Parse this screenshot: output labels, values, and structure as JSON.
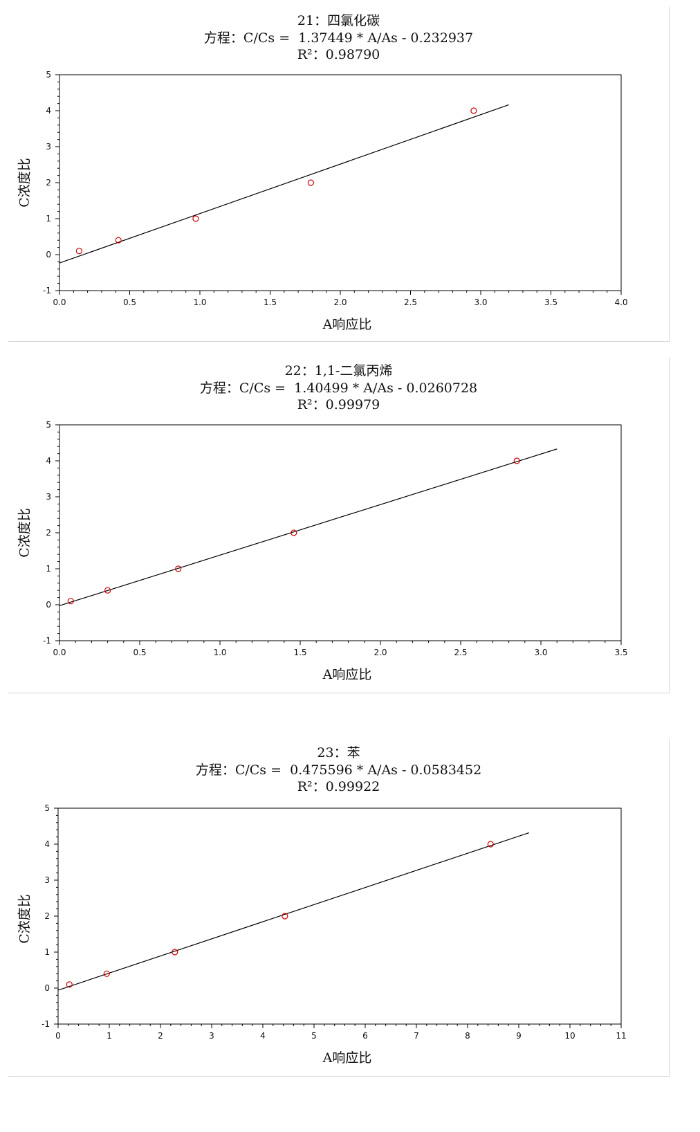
{
  "colors": {
    "point": "#cc0000",
    "line": "#000000",
    "frame": "#000000"
  },
  "chart_data": [
    {
      "type": "scatter",
      "title": "21：四氯化碳",
      "equation_label": "方程：",
      "equation": "C/Cs =  1.37449 * A/As - 0.232937",
      "r2_label": "R²：",
      "r2": "0.98790",
      "xlabel": "A响应比",
      "ylabel": "C浓度比",
      "xlim": [
        0,
        4
      ],
      "ylim": [
        -1,
        5
      ],
      "xticks": [
        "0.0",
        "0.5",
        "1.0",
        "1.5",
        "2.0",
        "2.5",
        "3.0",
        "3.5",
        "4.0"
      ],
      "yticks": [
        "-1",
        "0",
        "1",
        "2",
        "3",
        "4",
        "5"
      ],
      "points": [
        [
          0.14,
          0.1
        ],
        [
          0.42,
          0.4
        ],
        [
          0.97,
          1.0
        ],
        [
          1.79,
          2.0
        ],
        [
          2.95,
          4.0
        ]
      ],
      "fit": {
        "slope": 1.37449,
        "intercept": -0.232937,
        "x_end": 3.2
      }
    },
    {
      "type": "scatter",
      "title": "22：1,1-二氯丙烯",
      "equation_label": "方程：",
      "equation": "C/Cs =  1.40499 * A/As - 0.0260728",
      "r2_label": "R²：",
      "r2": "0.99979",
      "xlabel": "A响应比",
      "ylabel": "C浓度比",
      "xlim": [
        0,
        3.5
      ],
      "ylim": [
        -1,
        5
      ],
      "xticks": [
        "0.0",
        "0.5",
        "1.0",
        "1.5",
        "2.0",
        "2.5",
        "3.0",
        "3.5"
      ],
      "yticks": [
        "-1",
        "0",
        "1",
        "2",
        "3",
        "4",
        "5"
      ],
      "points": [
        [
          0.07,
          0.1
        ],
        [
          0.3,
          0.4
        ],
        [
          0.74,
          1.0
        ],
        [
          1.46,
          2.0
        ],
        [
          2.85,
          4.0
        ]
      ],
      "fit": {
        "slope": 1.40499,
        "intercept": -0.0260728,
        "x_end": 3.1
      }
    },
    {
      "type": "scatter",
      "title": "23：苯",
      "equation_label": "方程：",
      "equation": "C/Cs =  0.475596 * A/As - 0.0583452",
      "r2_label": "R²：",
      "r2": "0.99922",
      "xlabel": "A响应比",
      "ylabel": "C浓度比",
      "xlim": [
        0,
        11
      ],
      "ylim": [
        -1,
        5
      ],
      "xticks": [
        "0",
        "1",
        "2",
        "3",
        "4",
        "5",
        "6",
        "7",
        "8",
        "9",
        "10",
        "11"
      ],
      "yticks": [
        "-1",
        "0",
        "1",
        "2",
        "3",
        "4",
        "5"
      ],
      "points": [
        [
          0.22,
          0.1
        ],
        [
          0.95,
          0.4
        ],
        [
          2.28,
          1.0
        ],
        [
          4.43,
          2.0
        ],
        [
          8.45,
          4.0
        ]
      ],
      "fit": {
        "slope": 0.475596,
        "intercept": -0.0583452,
        "x_end": 9.2
      }
    }
  ]
}
